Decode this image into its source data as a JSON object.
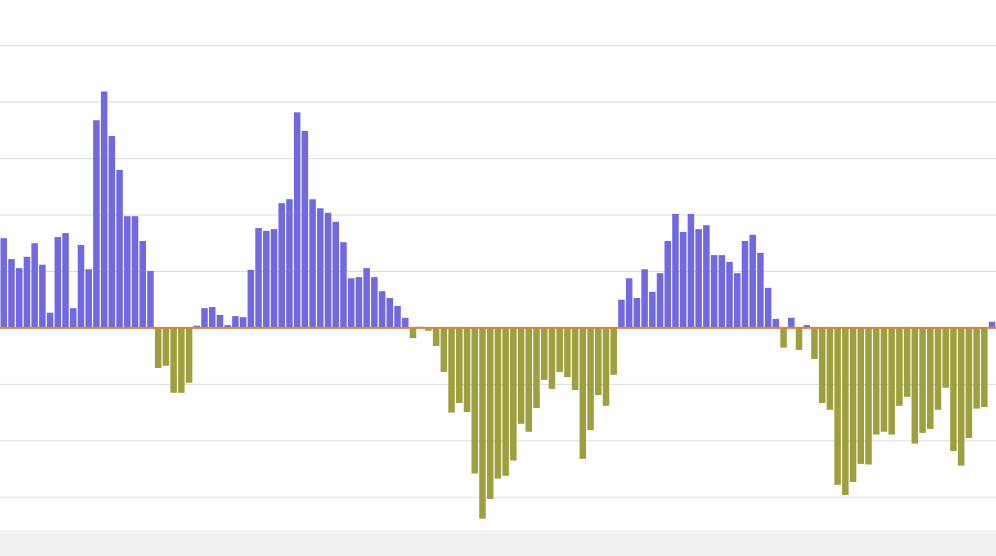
{
  "chart_data": {
    "type": "bar",
    "positive_color": "#7268e0",
    "negative_color": "#9ea03f",
    "baseline_color": "#cf8a3a",
    "grid": true,
    "ylim": [
      -3.58,
      5.81
    ],
    "yticks": [
      -3,
      -2,
      -1,
      0,
      1,
      2,
      3,
      4,
      5
    ],
    "values": [
      1.59,
      1.22,
      1.06,
      1.26,
      1.5,
      1.12,
      0.27,
      1.61,
      1.68,
      0.35,
      1.47,
      1.04,
      3.68,
      4.19,
      3.4,
      2.8,
      1.98,
      1.98,
      1.54,
      1.01,
      -0.71,
      -0.67,
      -1.15,
      -1.15,
      -0.97,
      0.04,
      0.35,
      0.37,
      0.23,
      0.05,
      0.21,
      0.19,
      1.03,
      1.77,
      1.72,
      1.75,
      2.21,
      2.28,
      3.82,
      3.49,
      2.28,
      2.12,
      2.04,
      1.88,
      1.52,
      0.88,
      0.9,
      1.06,
      0.9,
      0.65,
      0.53,
      0.39,
      0.18,
      -0.18,
      0.02,
      -0.05,
      -0.32,
      -0.78,
      -1.5,
      -1.33,
      -1.49,
      -2.58,
      -3.38,
      -3.03,
      -2.67,
      -2.62,
      -2.35,
      -1.7,
      -1.84,
      -1.42,
      -0.92,
      -1.08,
      -0.78,
      -0.87,
      -1.1,
      -2.32,
      -1.81,
      -1.19,
      -1.38,
      -0.83,
      0.5,
      0.88,
      0.53,
      1.04,
      0.64,
      0.97,
      1.54,
      2.02,
      1.7,
      2.02,
      1.75,
      1.82,
      1.29,
      1.29,
      1.17,
      0.97,
      1.54,
      1.65,
      1.33,
      0.71,
      0.16,
      -0.35,
      0.18,
      -0.39,
      0.05,
      -0.55,
      -1.33,
      -1.45,
      -2.78,
      -2.96,
      -2.73,
      -2.41,
      -2.42,
      -1.89,
      -1.84,
      -1.89,
      -1.38,
      -1.22,
      -2.05,
      -1.86,
      -1.79,
      -1.45,
      -1.06,
      -2.18,
      -2.44,
      -1.95,
      -1.43,
      -1.4,
      0.11
    ]
  }
}
